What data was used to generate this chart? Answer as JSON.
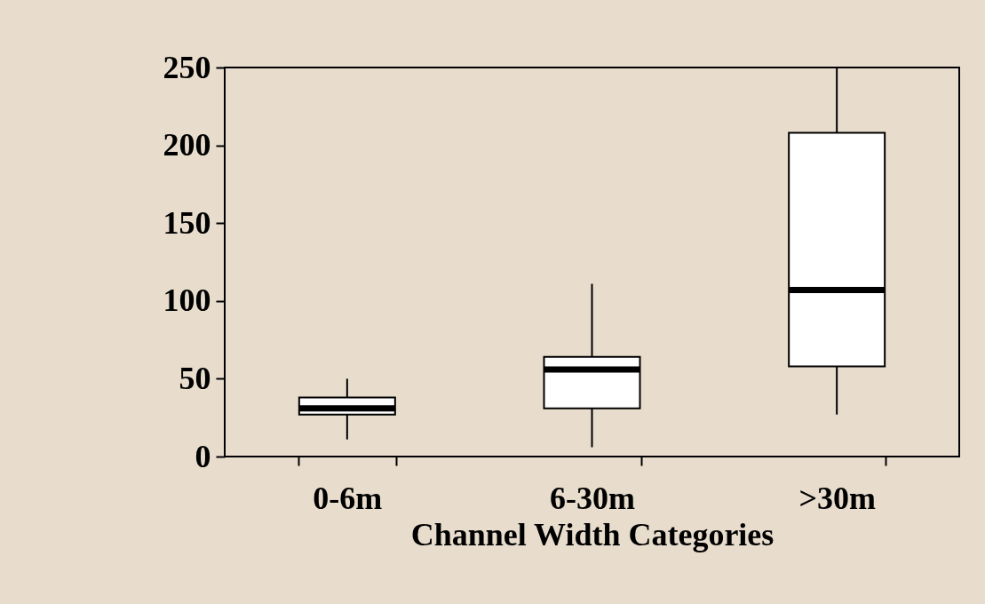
{
  "chart_data": {
    "type": "box",
    "xlabel": "Channel Width Categories",
    "categories": [
      "0-6m",
      "6-30m",
      ">30m"
    ],
    "boxes": [
      {
        "low": 11,
        "q1": 27,
        "median": 31,
        "q3": 38,
        "high": 50
      },
      {
        "low": 6,
        "q1": 31,
        "median": 56,
        "q3": 64,
        "high": 111
      },
      {
        "low": 27,
        "q1": 58,
        "median": 107,
        "q3": 208,
        "high": 250
      }
    ],
    "ylim": [
      0,
      250
    ],
    "yticks": [
      0,
      50,
      100,
      150,
      200,
      250
    ]
  }
}
